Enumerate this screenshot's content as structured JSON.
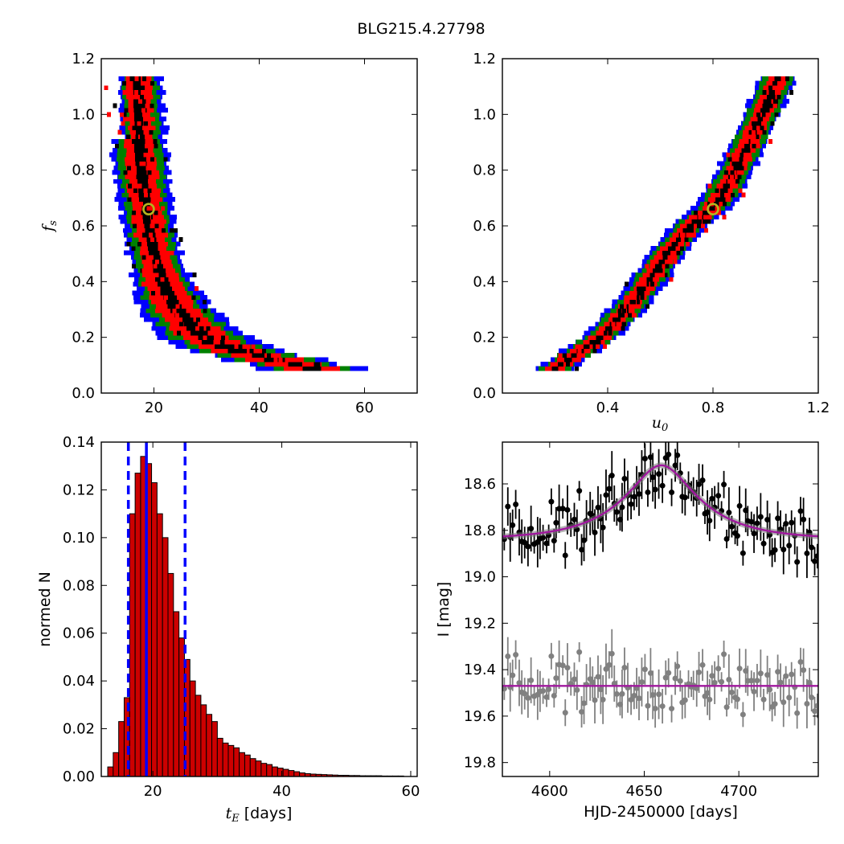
{
  "figure": {
    "title": "BLG215.4.27798"
  },
  "colors": {
    "sigma1": "#000000",
    "sigma2": "#ff0000",
    "sigma3": "#008000",
    "sigma4": "#0000ff",
    "best_fit_marker": "#b5b51f",
    "hist_fill": "#cc0000",
    "hist_lines": "#0000ff",
    "data_black": "#000000",
    "data_gray": "#808080",
    "model": "#a0189e"
  },
  "chart_data": [
    {
      "id": "tE_fs",
      "type": "heatmap",
      "xlabel": "",
      "ylabel": {
        "symbol": "f",
        "sub": "s"
      },
      "xlim": [
        10,
        70
      ],
      "ylim": [
        0.0,
        1.2
      ],
      "xticks": [
        20,
        40,
        60
      ],
      "yticks": [
        0.0,
        0.2,
        0.4,
        0.6,
        0.8,
        1.0,
        1.2
      ],
      "xticklabels": [
        "20",
        "40",
        "60"
      ],
      "yticklabels": [
        "0.0",
        "0.2",
        "0.4",
        "0.6",
        "0.8",
        "1.0",
        "1.2"
      ],
      "fs_range": [
        0.08,
        1.13
      ],
      "ridge": [
        [
          0.08,
          50.0
        ],
        [
          0.15,
          34.5
        ],
        [
          0.2,
          29.0
        ],
        [
          0.3,
          24.0
        ],
        [
          0.4,
          21.5
        ],
        [
          0.5,
          20.0
        ],
        [
          0.6,
          19.0
        ],
        [
          0.7,
          18.2
        ],
        [
          0.8,
          17.6
        ],
        [
          0.9,
          17.2
        ],
        [
          1.0,
          16.8
        ],
        [
          1.13,
          16.5
        ]
      ],
      "best_fit": {
        "x": 19.0,
        "y": 0.66
      },
      "grid": false
    },
    {
      "id": "u0_fs",
      "type": "heatmap",
      "xlabel": {
        "symbol": "u",
        "sub": "0"
      },
      "ylabel": "",
      "xlim": [
        0.0,
        1.2
      ],
      "ylim": [
        0.0,
        1.2
      ],
      "xticks": [
        0.4,
        0.8,
        1.2
      ],
      "yticks": [
        0.0,
        0.2,
        0.4,
        0.6,
        0.8,
        1.0,
        1.2
      ],
      "xticklabels": [
        "0.4",
        "0.8",
        "1.2"
      ],
      "yticklabels": [
        "0.0",
        "0.2",
        "0.4",
        "0.6",
        "0.8",
        "1.0",
        "1.2"
      ],
      "fs_range": [
        0.08,
        1.13
      ],
      "ridge": [
        [
          0.08,
          0.2
        ],
        [
          0.2,
          0.38
        ],
        [
          0.3,
          0.48
        ],
        [
          0.4,
          0.56
        ],
        [
          0.5,
          0.63
        ],
        [
          0.6,
          0.72
        ],
        [
          0.66,
          0.8
        ],
        [
          0.7,
          0.83
        ],
        [
          0.8,
          0.89
        ],
        [
          0.9,
          0.94
        ],
        [
          1.0,
          0.99
        ],
        [
          1.13,
          1.05
        ]
      ],
      "best_fit": {
        "x": 0.8,
        "y": 0.66
      },
      "grid": false
    },
    {
      "id": "tE_hist",
      "type": "bar",
      "xlabel": {
        "symbol": "t",
        "sub": "E",
        "unit": " [days]"
      },
      "ylabel": "normed N",
      "xlim": [
        12,
        61
      ],
      "ylim": [
        0.0,
        0.14
      ],
      "xticks": [
        20,
        40,
        60
      ],
      "yticks": [
        0.0,
        0.02,
        0.04,
        0.06,
        0.08,
        0.1,
        0.12,
        0.14
      ],
      "xticklabels": [
        "20",
        "40",
        "60"
      ],
      "yticklabels": [
        "0.00",
        "0.02",
        "0.04",
        "0.06",
        "0.08",
        "0.10",
        "0.12",
        "0.14"
      ],
      "bin_start": 13.0,
      "bin_width": 0.85,
      "values": [
        0.004,
        0.01,
        0.023,
        0.033,
        0.11,
        0.127,
        0.134,
        0.131,
        0.123,
        0.11,
        0.1,
        0.085,
        0.069,
        0.058,
        0.049,
        0.04,
        0.034,
        0.03,
        0.026,
        0.023,
        0.016,
        0.014,
        0.013,
        0.012,
        0.01,
        0.009,
        0.0075,
        0.0065,
        0.0055,
        0.005,
        0.004,
        0.0035,
        0.003,
        0.0025,
        0.002,
        0.0015,
        0.0012,
        0.001,
        0.0009,
        0.0008,
        0.0007,
        0.0006,
        0.0005,
        0.0005,
        0.0004,
        0.0004,
        0.0003,
        0.0003,
        0.0003,
        0.0003,
        0.0002,
        0.0002,
        0.0002,
        0.0002
      ],
      "median": 19.0,
      "dashed": [
        16.2,
        25.0
      ],
      "grid": false
    },
    {
      "id": "lightcurve",
      "type": "scatter",
      "xlabel": "HJD-2450000 [days]",
      "ylabel": "I [mag]",
      "xlim": [
        4575,
        4742
      ],
      "ylim": [
        19.86,
        18.42
      ],
      "xticks": [
        4600,
        4650,
        4700
      ],
      "yticks": [
        18.6,
        18.8,
        19.0,
        19.2,
        19.4,
        19.6,
        19.8
      ],
      "xticklabels": [
        "4600",
        "4650",
        "4700"
      ],
      "yticklabels": [
        "18.6",
        "18.8",
        "19.0",
        "19.2",
        "19.4",
        "19.6",
        "19.8"
      ],
      "baseline_mag": 18.84,
      "peak_mag": 18.52,
      "peak_time": 4659.0,
      "residual_baseline": 19.47,
      "grid": false
    }
  ]
}
